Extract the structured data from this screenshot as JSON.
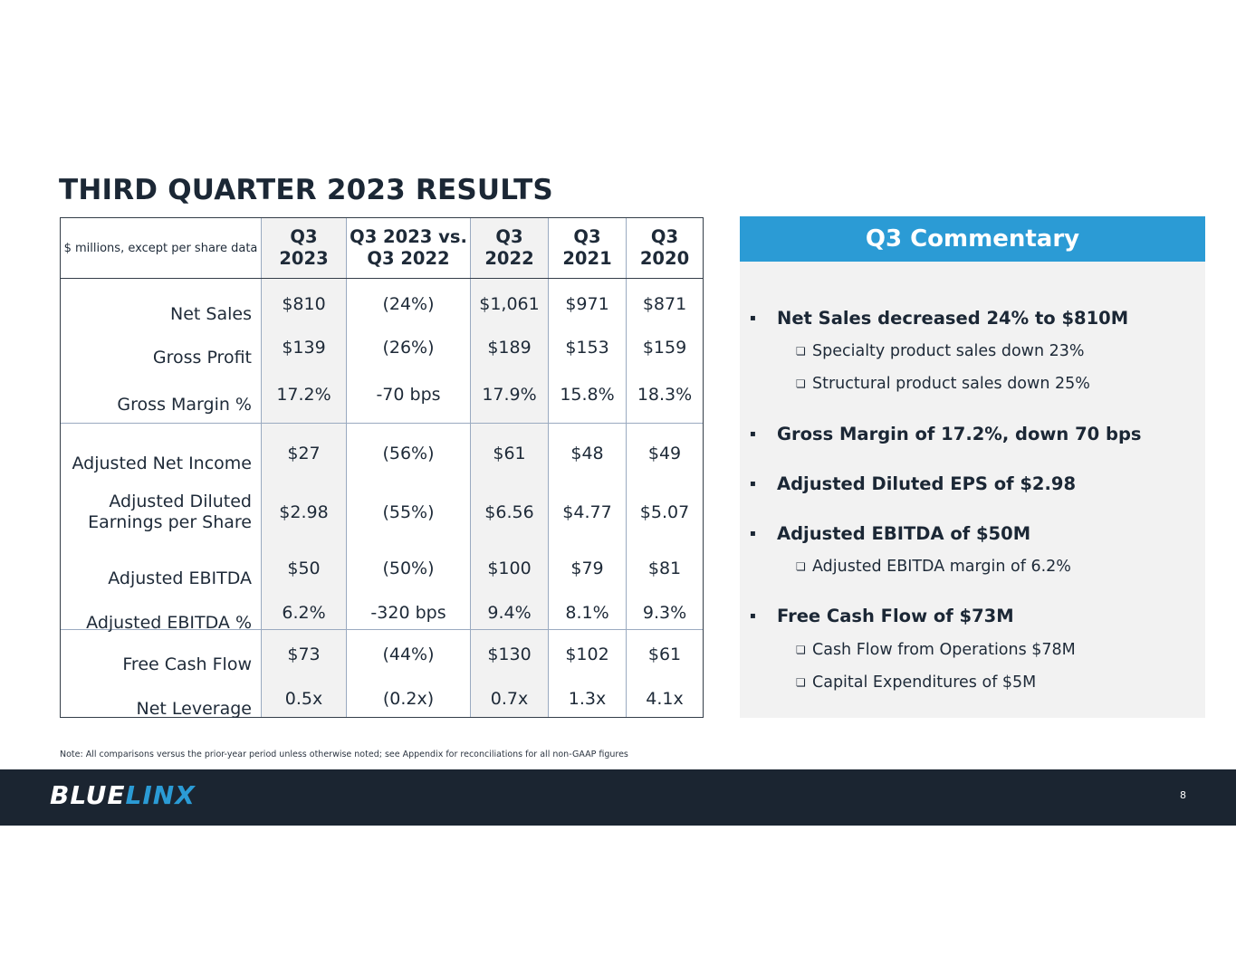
{
  "title": "THIRD QUARTER 2023 RESULTS",
  "table": {
    "units_label": "$ millions, except per share data",
    "headers": [
      {
        "l1": "Q3",
        "l2": "2023"
      },
      {
        "l1": "Q3 2023 vs.",
        "l2": "Q3 2022"
      },
      {
        "l1": "Q3",
        "l2": "2022"
      },
      {
        "l1": "Q3",
        "l2": "2021"
      },
      {
        "l1": "Q3",
        "l2": "2020"
      }
    ],
    "rows": [
      {
        "label": [
          "Net Sales"
        ],
        "values": [
          "$810",
          "(24%)",
          "$1,061",
          "$971",
          "$871"
        ]
      },
      {
        "label": [
          "Gross Profit"
        ],
        "values": [
          "$139",
          "(26%)",
          "$189",
          "$153",
          "$159"
        ]
      },
      {
        "label": [
          "Gross Margin %"
        ],
        "values": [
          "17.2%",
          "-70 bps",
          "17.9%",
          "15.8%",
          "18.3%"
        ]
      },
      {
        "label": [
          "Adjusted Net Income"
        ],
        "values": [
          "$27",
          "(56%)",
          "$61",
          "$48",
          "$49"
        ]
      },
      {
        "label": [
          "Adjusted Diluted",
          "Earnings per Share"
        ],
        "values": [
          "$2.98",
          "(55%)",
          "$6.56",
          "$4.77",
          "$5.07"
        ]
      },
      {
        "label": [
          "Adjusted EBITDA"
        ],
        "values": [
          "$50",
          "(50%)",
          "$100",
          "$79",
          "$81"
        ]
      },
      {
        "label": [
          "Adjusted EBITDA %"
        ],
        "values": [
          "6.2%",
          "-320 bps",
          "9.4%",
          "8.1%",
          "9.3%"
        ]
      },
      {
        "label": [
          "Free Cash Flow"
        ],
        "values": [
          "$73",
          "(44%)",
          "$130",
          "$102",
          "$61"
        ]
      },
      {
        "label": [
          "Net Leverage"
        ],
        "values": [
          "0.5x",
          "(0.2x)",
          "0.7x",
          "1.3x",
          "4.1x"
        ]
      }
    ]
  },
  "commentary": {
    "heading": "Q3 Commentary",
    "items": [
      {
        "type": "bullet",
        "text": "Net Sales decreased 24% to $810M"
      },
      {
        "type": "sub",
        "text": "Specialty product sales down 23%"
      },
      {
        "type": "sub",
        "text": "Structural product sales down 25%"
      },
      {
        "type": "bullet",
        "text": "Gross Margin of 17.2%, down 70 bps"
      },
      {
        "type": "bullet",
        "text": "Adjusted Diluted EPS of $2.98"
      },
      {
        "type": "bullet",
        "text": "Adjusted EBITDA of $50M"
      },
      {
        "type": "sub",
        "text": "Adjusted EBITDA margin of 6.2%"
      },
      {
        "type": "bullet",
        "text": "Free Cash Flow of $73M"
      },
      {
        "type": "sub",
        "text": "Cash Flow from Operations $78M"
      },
      {
        "type": "sub",
        "text": "Capital Expenditures of $5M"
      }
    ]
  },
  "note": "Note:  All comparisons versus the prior-year period unless otherwise noted; see Appendix for reconciliations for all non-GAAP figures",
  "footer": {
    "logo_part1": "BLUE",
    "logo_part2": "LINX",
    "page_number": "8",
    "colors": {
      "bar": "#1b2531",
      "accent": "#2b9bd5"
    }
  }
}
